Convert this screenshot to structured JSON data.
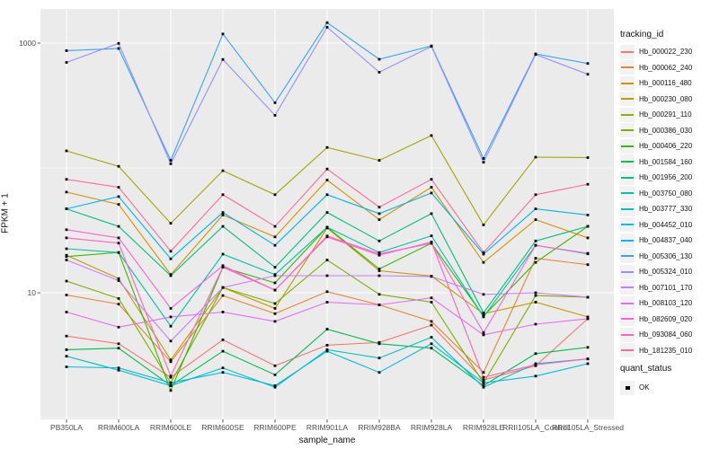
{
  "chart_data": {
    "type": "line",
    "title": "",
    "xlabel": "sample_name",
    "ylabel": "FPKM + 1",
    "y_scale": "log10",
    "grid": true,
    "panel_bg": "#EBEBEB",
    "grid_color": "#FFFFFF",
    "point_shape": "black-square",
    "y_ticks": [
      {
        "label": "1000",
        "value": 1000
      },
      {
        "label": "10",
        "value": 10
      }
    ],
    "y_minor_gridlines": [
      100,
      1
    ],
    "ylim": [
      0.97,
      1900
    ],
    "categories": [
      "PB350LA",
      "RRIM600LA",
      "RRIM600LE",
      "RRIM600SE",
      "RRIM600PE",
      "RRIM901LA",
      "RRIM928BA",
      "RRIM928LA",
      "RRIM928LE",
      "RRII105LA_Control",
      "RRII105LA_Stressed"
    ],
    "legend": {
      "title": "tracking_id",
      "position": "right"
    },
    "quant_legend": {
      "title": "quant_status",
      "items": [
        {
          "label": "OK",
          "shape": "black-square"
        }
      ]
    },
    "series": [
      {
        "name": "Hb_000022_230",
        "color": "#F8766D",
        "values": [
          4.5,
          3.9,
          2.1,
          4.2,
          2.6,
          3.8,
          4.0,
          5.5,
          2.0,
          2.6,
          6.2
        ]
      },
      {
        "name": "Hb_000062_240",
        "color": "#EA8331",
        "values": [
          9.6,
          8.1,
          2.8,
          9.5,
          6.8,
          10.2,
          8.0,
          5.9,
          2.3,
          18.9,
          16.8
        ]
      },
      {
        "name": "Hb_000116_480",
        "color": "#D89000",
        "values": [
          64,
          51,
          14,
          42,
          28,
          80,
          38.5,
          70,
          17.5,
          38.5,
          27.5
        ]
      },
      {
        "name": "Hb_000230_080",
        "color": "#C09B00",
        "values": [
          20,
          13,
          2.9,
          11,
          7.5,
          33,
          15,
          13.6,
          6.8,
          8.4,
          6.4
        ]
      },
      {
        "name": "Hb_000291_110",
        "color": "#A3A500",
        "values": [
          137,
          103,
          36,
          95,
          61,
          146,
          115,
          182,
          35,
          122,
          121
        ]
      },
      {
        "name": "Hb_000386_030",
        "color": "#7CAE00",
        "values": [
          12.4,
          9.0,
          1.9,
          11,
          8.2,
          18.3,
          9.7,
          8.4,
          1.9,
          9.5,
          9.2
        ]
      },
      {
        "name": "Hb_000406_220",
        "color": "#39B600",
        "values": [
          19.5,
          21,
          1.65,
          16,
          12,
          33.5,
          15.5,
          24.9,
          6.5,
          17.5,
          34
        ]
      },
      {
        "name": "Hb_001584_160",
        "color": "#00BB4E",
        "values": [
          3.5,
          3.6,
          1.8,
          3.4,
          2.2,
          5.1,
          3.9,
          3.6,
          1.8,
          3.25,
          3.65
        ]
      },
      {
        "name": "Hb_001956_200",
        "color": "#00BF7D",
        "values": [
          47,
          34,
          13.7,
          34,
          16,
          44,
          26,
          43,
          6.9,
          26,
          34
        ]
      },
      {
        "name": "Hb_003750_080",
        "color": "#00C1A3",
        "values": [
          22.5,
          21,
          5.4,
          20.4,
          14,
          33.5,
          21,
          28.6,
          6.4,
          24,
          20.5
        ]
      },
      {
        "name": "Hb_003777_330",
        "color": "#00BFC4",
        "values": [
          3.1,
          2.4,
          1.8,
          2.5,
          1.75,
          3.5,
          3.0,
          4.4,
          1.75,
          2.7,
          2.95
        ]
      },
      {
        "name": "Hb_004452_010",
        "color": "#00BAE0",
        "values": [
          2.55,
          2.5,
          1.9,
          2.3,
          1.8,
          3.4,
          2.3,
          3.9,
          1.9,
          2.15,
          2.7
        ]
      },
      {
        "name": "Hb_004837_040",
        "color": "#00B0F6",
        "values": [
          47,
          59,
          18.7,
          44,
          24,
          61,
          43,
          63,
          20.4,
          47,
          42
        ]
      },
      {
        "name": "Hb_005306_130",
        "color": "#35A2FF",
        "values": [
          870,
          905,
          115,
          1185,
          333,
          1460,
          742,
          950,
          119,
          820,
          687
        ]
      },
      {
        "name": "Hb_005324_010",
        "color": "#9590FF",
        "values": [
          700,
          995,
          108,
          740,
          264,
          1340,
          585,
          940,
          111,
          810,
          563
        ]
      },
      {
        "name": "Hb_007101_170",
        "color": "#C77CFF",
        "values": [
          18.3,
          12.5,
          4.1,
          11,
          13.7,
          13.7,
          13.7,
          13.5,
          9.7,
          10,
          9.2
        ]
      },
      {
        "name": "Hb_008103_120",
        "color": "#E76BF3",
        "values": [
          7.0,
          5.3,
          6.4,
          7.0,
          5.9,
          8.4,
          8.0,
          9.1,
          4.6,
          5.6,
          6.2
        ]
      },
      {
        "name": "Hb_082609_020",
        "color": "#FA62DB",
        "values": [
          32,
          27.5,
          7.5,
          16.5,
          10.5,
          28.5,
          20.5,
          24.9,
          4.8,
          24,
          20.7
        ]
      },
      {
        "name": "Hb_093084_060",
        "color": "#FF62BC",
        "values": [
          27.5,
          25,
          2.15,
          16,
          10.5,
          28,
          20,
          25.5,
          2.1,
          2.65,
          2.95
        ]
      },
      {
        "name": "Hb_181235_010",
        "color": "#FF6A98",
        "values": [
          81,
          70,
          21.5,
          61,
          34,
          98,
          48.5,
          81,
          21,
          61,
          74
        ]
      }
    ]
  }
}
